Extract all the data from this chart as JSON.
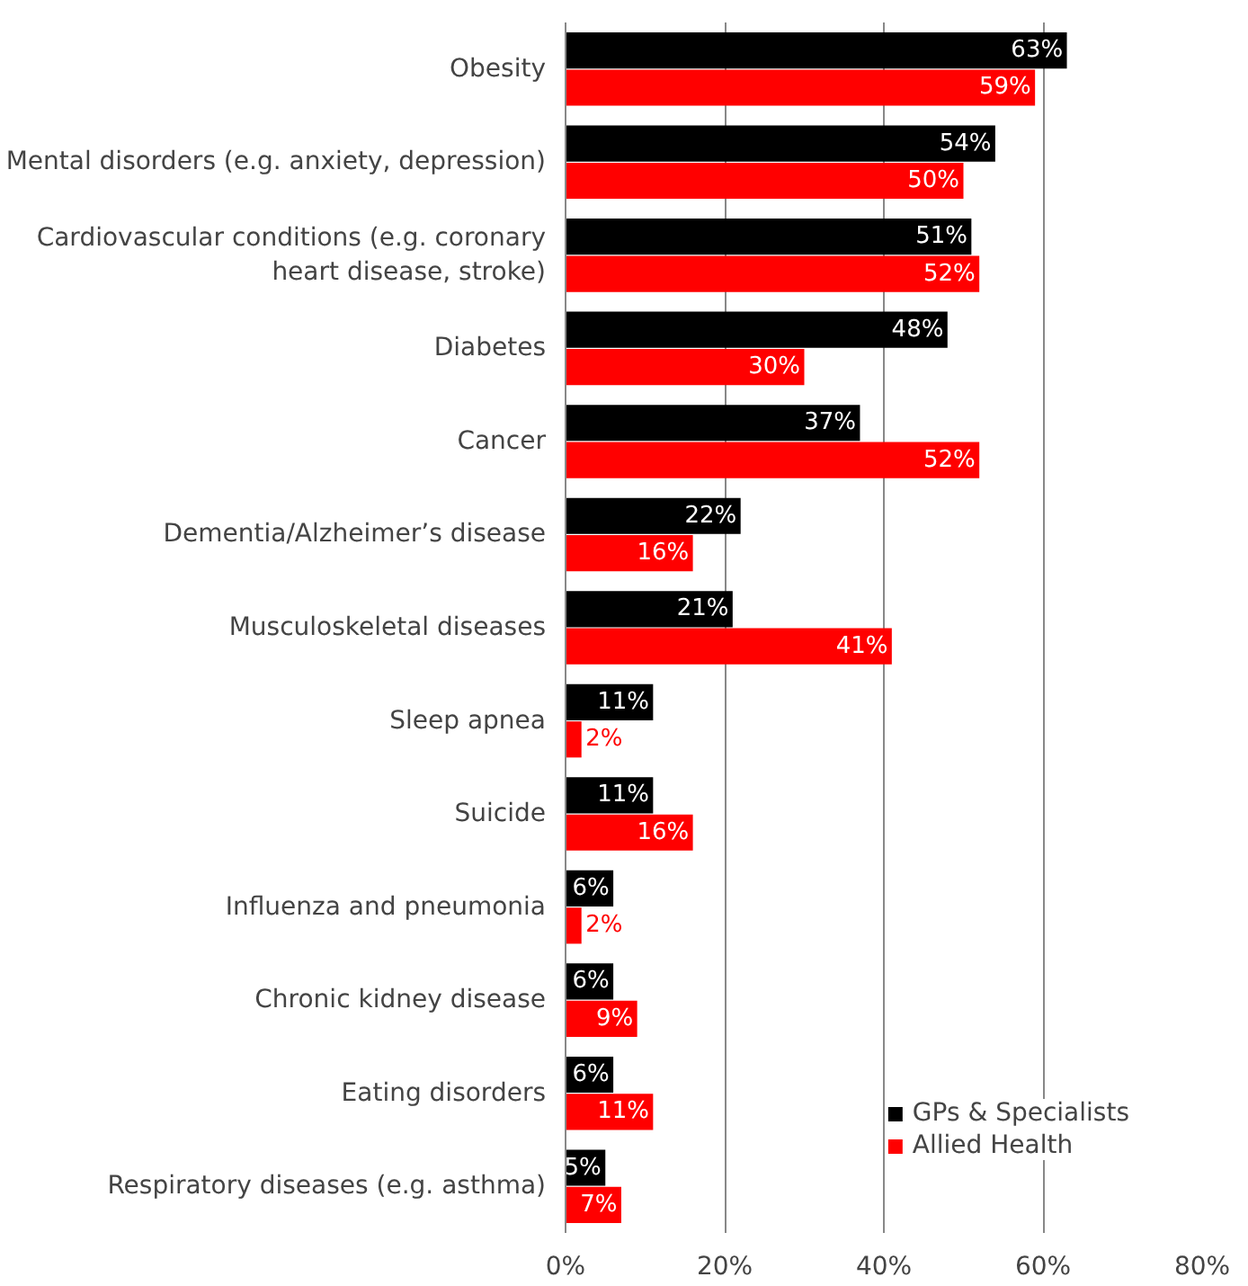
{
  "chart_data": {
    "type": "bar",
    "orientation": "horizontal",
    "categories": [
      "Obesity",
      "Mental disorders (e.g. anxiety, depression)",
      "Cardiovascular conditions (e.g. coronary heart disease, stroke)",
      "Diabetes",
      "Cancer",
      "Dementia/Alzheimer’s disease",
      "Musculoskeletal diseases",
      "Sleep apnea",
      "Suicide",
      "Influenza and pneumonia",
      "Chronic kidney disease",
      "Eating disorders",
      "Respiratory diseases (e.g. asthma)"
    ],
    "series": [
      {
        "name": "GPs & Specialists",
        "color": "#000000",
        "values": [
          63,
          54,
          51,
          48,
          37,
          22,
          21,
          11,
          11,
          6,
          6,
          6,
          5
        ],
        "value_labels": [
          "63%",
          "54%",
          "51%",
          "48%",
          "37%",
          "22%",
          "21%",
          "11%",
          "11%",
          "6%",
          "6%",
          "6%",
          "5%"
        ]
      },
      {
        "name": "Allied Health",
        "color": "#ff0000",
        "values": [
          59,
          50,
          52,
          30,
          52,
          16,
          41,
          2,
          16,
          2,
          9,
          11,
          7
        ],
        "value_labels": [
          "59%",
          "50%",
          "52%",
          "30%",
          "52%",
          "16%",
          "41%",
          "2%",
          "16%",
          "2%",
          "9%",
          "11%",
          "7%"
        ]
      }
    ],
    "xlim": [
      0,
      80
    ],
    "xticks": [
      {
        "value": 0,
        "label": "0%"
      },
      {
        "value": 20,
        "label": "20%"
      },
      {
        "value": 40,
        "label": "40%"
      },
      {
        "value": 60,
        "label": "60%"
      },
      {
        "value": 80,
        "label": "80%"
      }
    ],
    "grid": "x",
    "legend": "bottom right"
  }
}
